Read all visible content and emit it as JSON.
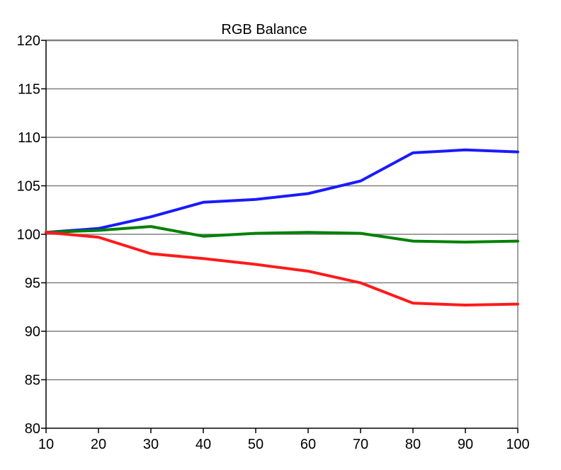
{
  "chart_data": {
    "type": "line",
    "title": "RGB Balance",
    "xlabel": "",
    "ylabel": "",
    "x": [
      10,
      20,
      30,
      40,
      50,
      60,
      70,
      80,
      90,
      100
    ],
    "xlim": [
      10,
      100
    ],
    "ylim": [
      80,
      120
    ],
    "x_ticks": [
      10,
      20,
      30,
      40,
      50,
      60,
      70,
      80,
      90,
      100
    ],
    "y_ticks": [
      80,
      85,
      90,
      95,
      100,
      105,
      110,
      115,
      120
    ],
    "grid": "horizontal",
    "legend": "none",
    "series": [
      {
        "color": "#1a1aff",
        "values": [
          100.2,
          100.6,
          101.8,
          103.3,
          103.6,
          104.2,
          105.5,
          108.4,
          108.7,
          108.5
        ]
      },
      {
        "color": "#008000",
        "values": [
          100.2,
          100.4,
          100.8,
          99.8,
          100.1,
          100.2,
          100.1,
          99.3,
          99.2,
          99.3
        ]
      },
      {
        "color": "#ff1a1a",
        "values": [
          100.2,
          99.7,
          98.0,
          97.5,
          96.9,
          96.2,
          95.0,
          92.9,
          92.7,
          92.8
        ]
      }
    ]
  }
}
